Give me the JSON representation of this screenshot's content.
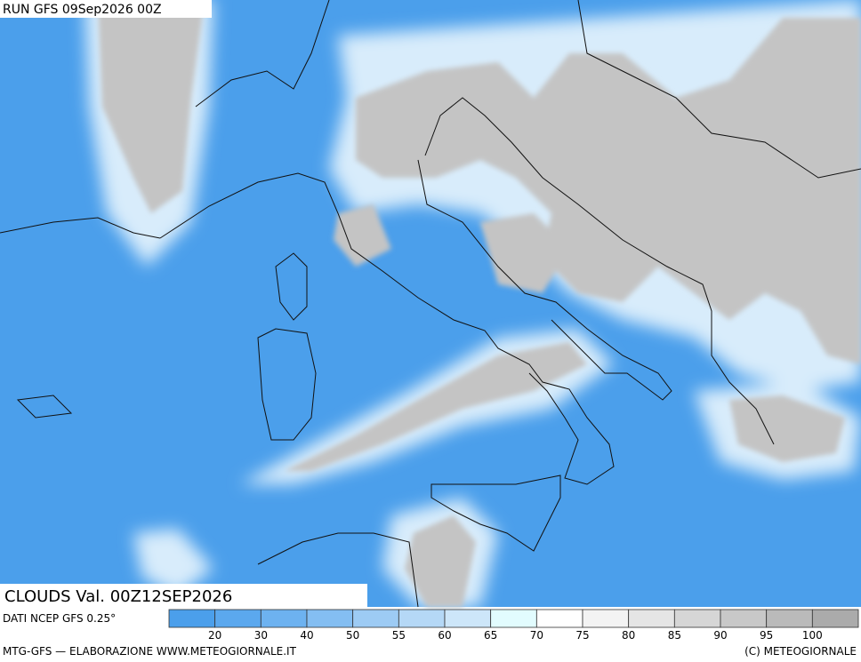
{
  "header": {
    "title": "RUN GFS 09Sep2026 00Z"
  },
  "map": {
    "label": "CLOUDS Val. 00Z12SEP2026",
    "source": "DATI NCEP GFS 0.25°"
  },
  "legend": {
    "ticks": [
      20,
      30,
      40,
      50,
      55,
      60,
      65,
      70,
      75,
      80,
      85,
      90,
      95,
      100
    ],
    "colors": [
      "#4b9feb",
      "#5ba8ee",
      "#6db2f0",
      "#84bef2",
      "#9dcbf4",
      "#b5d8f6",
      "#cde6f9",
      "#e2fcfe",
      "#ffffff",
      "#f3f3f3",
      "#e5e5e5",
      "#d6d6d6",
      "#c8c8c8",
      "#bababa",
      "#ababab"
    ]
  },
  "footer": {
    "left": "MTG-GFS — ELABORAZIONE WWW.METEOGIORNALE.IT",
    "right": "(C) METEOGIORNALE"
  }
}
